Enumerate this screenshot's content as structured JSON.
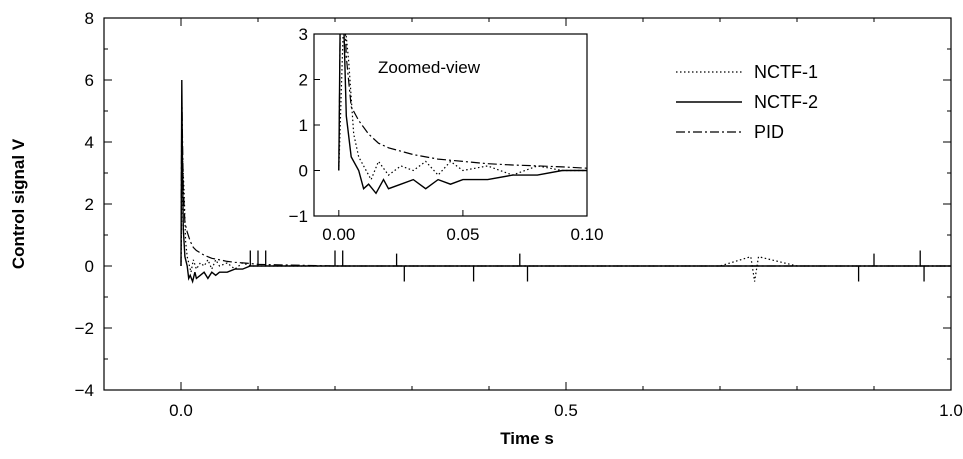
{
  "chart_data": {
    "type": "line",
    "xlabel": "Time s",
    "ylabel": "Control signal V",
    "xlim": [
      -0.1,
      1.0
    ],
    "ylim": [
      -4,
      8
    ],
    "xticks": [
      "0.0",
      "0.5",
      "1.0"
    ],
    "yticks": [
      "8",
      "6",
      "4",
      "2",
      "0",
      "−2",
      "−4"
    ],
    "grid": false,
    "legend_position": "top-right",
    "series": [
      {
        "name": "NCTF-1",
        "style": "dotted",
        "x": [
          0.0,
          0.002,
          0.004,
          0.006,
          0.008,
          0.01,
          0.013,
          0.016,
          0.02,
          0.025,
          0.03,
          0.035,
          0.04,
          0.045,
          0.05,
          0.06,
          0.07,
          0.08,
          0.09,
          0.1,
          0.15,
          0.2,
          0.3,
          0.4,
          0.5,
          0.6,
          0.7,
          0.74,
          0.745,
          0.75,
          0.8,
          0.9,
          1.0
        ],
        "values": [
          0.0,
          3.5,
          2.4,
          0.8,
          0.3,
          0.1,
          -0.2,
          0.2,
          -0.1,
          0.1,
          0.0,
          0.2,
          -0.1,
          0.2,
          0.0,
          0.1,
          -0.1,
          0.1,
          0.0,
          0.0,
          0.0,
          0.0,
          0.0,
          0.0,
          0.0,
          0.0,
          0.0,
          0.3,
          -0.5,
          0.3,
          0.0,
          0.0,
          0.0
        ]
      },
      {
        "name": "NCTF-2",
        "style": "solid",
        "x": [
          0.0,
          0.001,
          0.002,
          0.003,
          0.005,
          0.008,
          0.01,
          0.012,
          0.015,
          0.018,
          0.02,
          0.025,
          0.03,
          0.035,
          0.04,
          0.045,
          0.05,
          0.06,
          0.07,
          0.08,
          0.09,
          0.1,
          0.15,
          0.2,
          0.28,
          0.38,
          0.44,
          0.5,
          0.6,
          0.7,
          0.8,
          0.88,
          0.96,
          1.0
        ],
        "values": [
          0.0,
          6.0,
          3.2,
          1.2,
          0.3,
          0.0,
          -0.4,
          -0.3,
          -0.5,
          -0.2,
          -0.4,
          -0.3,
          -0.2,
          -0.4,
          -0.2,
          -0.3,
          -0.2,
          -0.2,
          -0.1,
          -0.1,
          0.0,
          0.0,
          0.0,
          0.0,
          0.0,
          0.0,
          0.0,
          0.0,
          0.0,
          0.0,
          0.0,
          0.0,
          0.0,
          0.0
        ]
      },
      {
        "name": "PID",
        "style": "dashdot",
        "x": [
          0.0,
          0.001,
          0.003,
          0.005,
          0.008,
          0.012,
          0.016,
          0.02,
          0.03,
          0.04,
          0.05,
          0.06,
          0.07,
          0.08,
          0.09,
          0.1,
          0.2,
          0.5,
          1.0
        ],
        "values": [
          0.0,
          5.5,
          2.5,
          1.4,
          1.1,
          0.8,
          0.6,
          0.5,
          0.35,
          0.25,
          0.2,
          0.15,
          0.12,
          0.1,
          0.08,
          0.05,
          0.0,
          0.0,
          0.0
        ]
      }
    ],
    "spikes": {
      "x": [
        0.09,
        0.1,
        0.11,
        0.2,
        0.21,
        0.28,
        0.29,
        0.38,
        0.44,
        0.45,
        0.88,
        0.9,
        0.96,
        0.965
      ],
      "values": [
        0.5,
        0.5,
        0.5,
        0.5,
        0.5,
        0.4,
        -0.5,
        -0.5,
        0.4,
        -0.5,
        -0.5,
        0.4,
        0.5,
        -0.5
      ]
    },
    "inset": {
      "title": "Zoomed-view",
      "xlim": [
        -0.01,
        0.1
      ],
      "ylim": [
        -1,
        3
      ],
      "xticks": [
        "0.00",
        "0.05",
        "0.10"
      ],
      "yticks": [
        "3",
        "2",
        "1",
        "0",
        "−1"
      ]
    }
  }
}
